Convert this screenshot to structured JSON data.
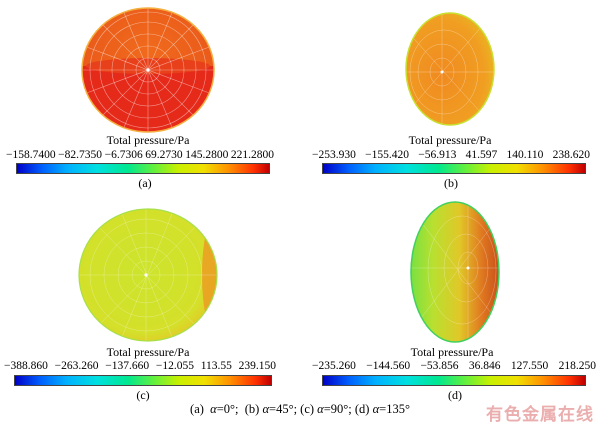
{
  "panels": [
    {
      "id": "a",
      "legend_title": "Total pressure/Pa",
      "ticks": [
        "−158.7400",
        "−82.7350",
        "−6.7306",
        "69.2730",
        "145.2800",
        "221.2800"
      ],
      "label": "(a)"
    },
    {
      "id": "b",
      "legend_title": "Total pressure/Pa",
      "ticks": [
        "−253.930",
        "−155.420",
        "−56.913",
        "41.597",
        "140.110",
        "238.620"
      ],
      "label": "(b)"
    },
    {
      "id": "c",
      "legend_title": "Total pressure/Pa",
      "ticks": [
        "−388.860",
        "−263.260",
        "−137.660",
        "−12.055",
        "113.55",
        "239.150"
      ],
      "label": "(c)"
    },
    {
      "id": "d",
      "legend_title": "Total pressure/Pa",
      "ticks": [
        "−235.260",
        "−144.560",
        "−53.856",
        "36.846",
        "127.550",
        "218.250"
      ],
      "label": "(d)"
    }
  ],
  "caption": {
    "a": "(a)",
    "a_val": "=0°;",
    "b": "(b)",
    "b_val": "=45°;",
    "c": "(c)",
    "c_val": "=90°;",
    "d": "(d)",
    "d_val": "=135°",
    "symbol": "α"
  },
  "watermark": "有色金属在线",
  "colors": {
    "high": "#e02a18",
    "mid_high": "#f07820",
    "mid": "#d8e020",
    "low": "#9ee040"
  }
}
